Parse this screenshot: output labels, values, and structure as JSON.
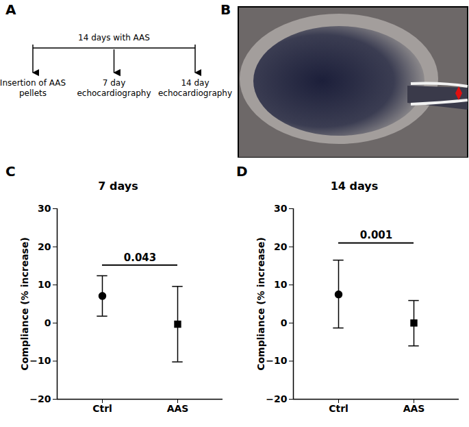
{
  "panel_labels": [
    "A",
    "B",
    "C",
    "D"
  ],
  "timeline": {
    "duration_label": "14 days with AAS",
    "events": [
      "Insertion of AAS pellets",
      "7 day echocardiography",
      "14 day echocardiography"
    ]
  },
  "chart_data": [
    {
      "type": "scatter",
      "title": "7 days",
      "ylabel": "Compliance (% increase)",
      "categories": [
        "Ctrl",
        "AAS"
      ],
      "series": [
        {
          "name": "Ctrl",
          "color": "#000000",
          "marker": "circle",
          "values": [
            7.1,
            null
          ],
          "error_low": [
            1.8,
            null
          ],
          "error_high": [
            12.4,
            null
          ]
        },
        {
          "name": "AAS",
          "color": "#000000",
          "marker": "square",
          "values": [
            null,
            -0.3
          ],
          "error_low": [
            null,
            -10.2
          ],
          "error_high": [
            null,
            9.6
          ]
        }
      ],
      "ylim": [
        -20,
        30
      ],
      "yticks": [
        -20,
        -10,
        0,
        10,
        20,
        30
      ],
      "annotations": [
        {
          "text": "0.043",
          "between": [
            "Ctrl",
            "AAS"
          ],
          "y": 15.2
        }
      ]
    },
    {
      "type": "scatter",
      "title": "14 days",
      "ylabel": "Compliance (% increase)",
      "categories": [
        "Ctrl",
        "AAS"
      ],
      "series": [
        {
          "name": "Ctrl",
          "color": "#000000",
          "marker": "circle",
          "values": [
            7.5,
            null
          ],
          "error_low": [
            -1.3,
            null
          ],
          "error_high": [
            16.5,
            null
          ]
        },
        {
          "name": "AAS",
          "color": "#000000",
          "marker": "square",
          "values": [
            null,
            0.0
          ],
          "error_low": [
            null,
            -6.0
          ],
          "error_high": [
            null,
            5.9
          ]
        }
      ],
      "ylim": [
        -20,
        30
      ],
      "yticks": [
        -20,
        -10,
        0,
        10,
        20,
        30
      ],
      "annotations": [
        {
          "text": "0.001",
          "between": [
            "Ctrl",
            "AAS"
          ],
          "y": 21
        }
      ]
    }
  ]
}
